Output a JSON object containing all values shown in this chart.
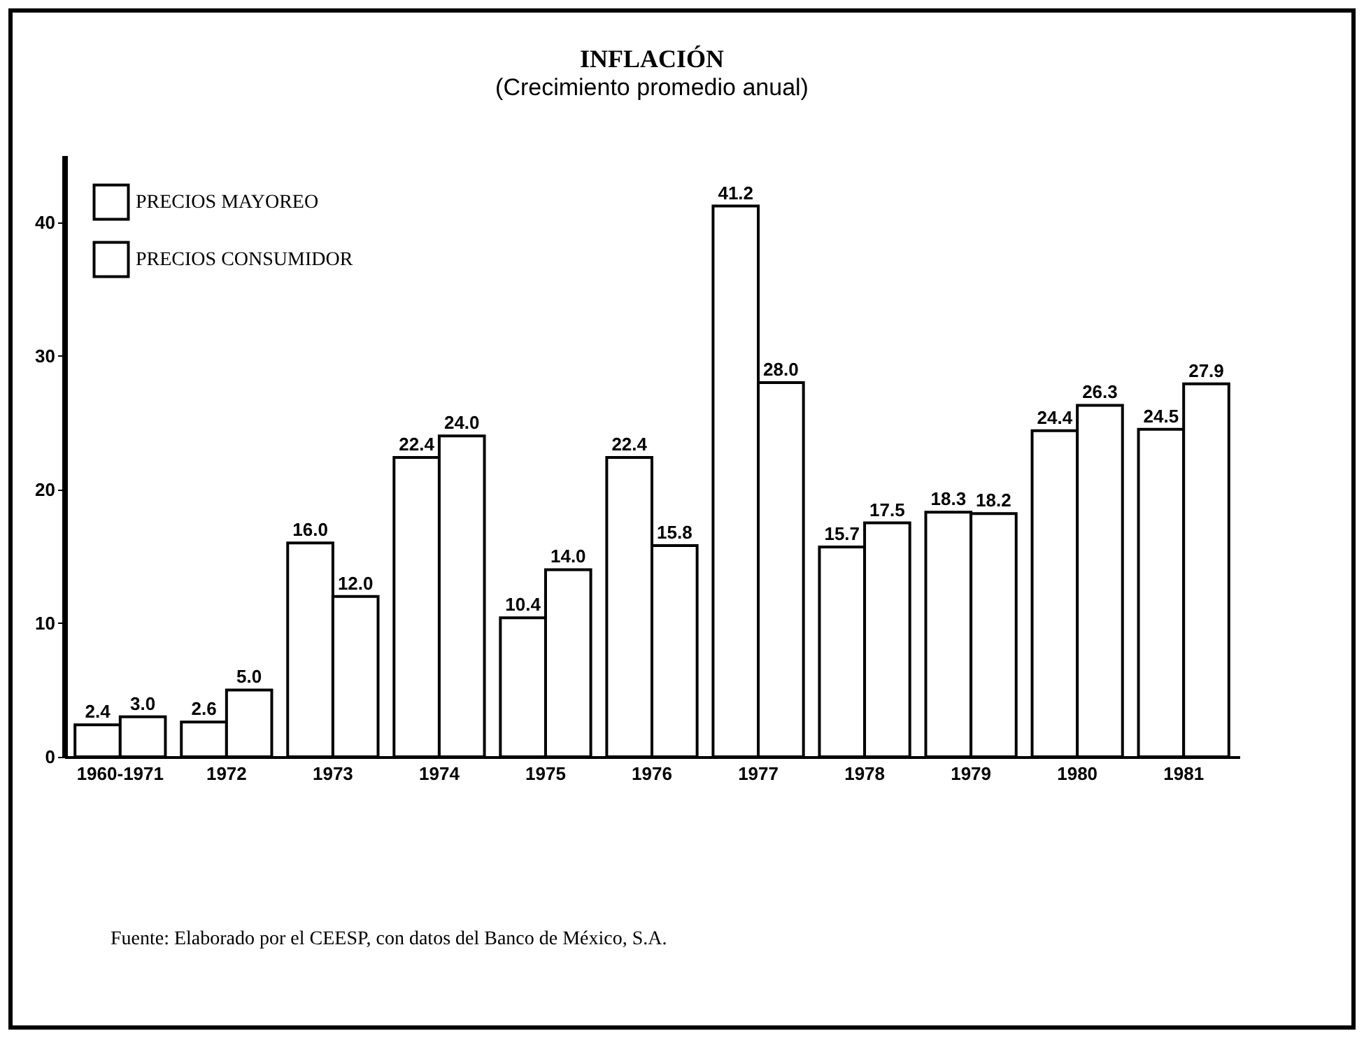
{
  "chart_data": {
    "type": "bar",
    "title": "INFLACIÓN",
    "subtitle": "(Crecimiento promedio anual)",
    "categories": [
      "1960-1971",
      "1972",
      "1973",
      "1974",
      "1975",
      "1976",
      "1977",
      "1978",
      "1979",
      "1980",
      "1981"
    ],
    "series": [
      {
        "name": "PRECIOS MAYOREO",
        "color": "#ffffff",
        "values": [
          2.4,
          2.6,
          16.0,
          22.4,
          10.4,
          22.4,
          41.2,
          15.7,
          18.3,
          24.4,
          24.5
        ],
        "value_labels": [
          "2.4",
          "2.6",
          "16.0",
          "22.4",
          "10.4",
          "22.4",
          "41.2",
          "15.7",
          "18.3",
          "24.4",
          "24.5"
        ]
      },
      {
        "name": "PRECIOS CONSUMIDOR",
        "color": "#ffffff",
        "values": [
          3.0,
          5.0,
          12.0,
          24.0,
          14.0,
          15.8,
          28.0,
          17.5,
          18.2,
          26.3,
          27.9
        ],
        "value_labels": [
          "3.0",
          "5.0",
          "12.0",
          "24.0",
          "14.0",
          "15.8",
          "28.0",
          "17.5",
          "18.2",
          "26.3",
          "27.9"
        ]
      }
    ],
    "ylim": [
      0,
      45
    ],
    "yticks": [
      0,
      10,
      20,
      30,
      40
    ],
    "grid": false,
    "legend": "top left",
    "annotations": [
      "Fuente: Elaborado por el CEESP, con datos del Banco de México, S.A."
    ]
  }
}
